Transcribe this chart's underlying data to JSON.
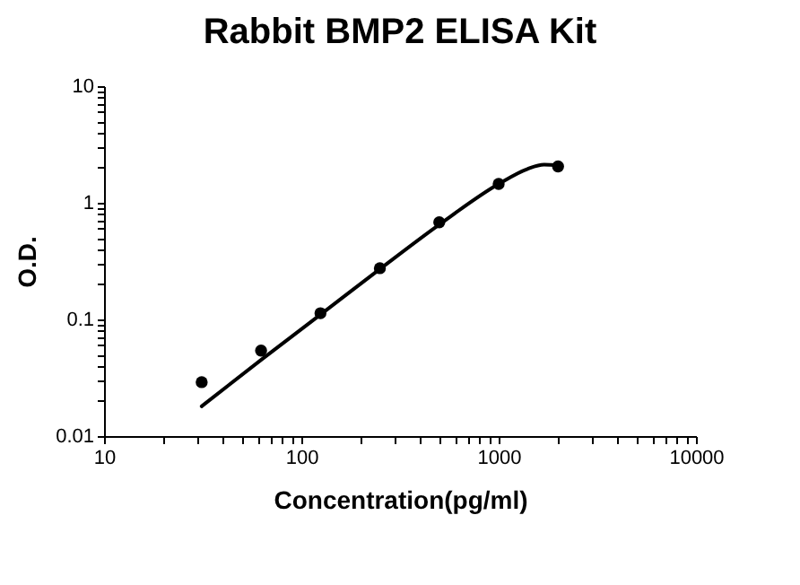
{
  "chart_data": {
    "type": "scatter",
    "title": "Rabbit BMP2 ELISA Kit",
    "xlabel": "Concentration(pg/ml)",
    "ylabel": "O.D.",
    "log": "xy",
    "marker": "circle",
    "grid": false,
    "xlim": [
      10,
      10000
    ],
    "ylim": [
      0.01,
      10
    ],
    "xticks": [
      10,
      {
        "value": 20,
        "label": null
      },
      {
        "value": 30,
        "label": null
      },
      {
        "value": 40,
        "label": null
      },
      {
        "value": 50,
        "label": null
      },
      {
        "value": 60,
        "label": null
      },
      {
        "value": 70,
        "label": null
      },
      {
        "value": 80,
        "label": null
      },
      {
        "value": 90,
        "label": null
      },
      100,
      {
        "value": 200,
        "label": null
      },
      {
        "value": 300,
        "label": null
      },
      {
        "value": 400,
        "label": null
      },
      {
        "value": 500,
        "label": null
      },
      {
        "value": 600,
        "label": null
      },
      {
        "value": 700,
        "label": null
      },
      {
        "value": 800,
        "label": null
      },
      {
        "value": 900,
        "label": null
      },
      1000,
      {
        "value": 2000,
        "label": null
      },
      {
        "value": 3000,
        "label": null
      },
      {
        "value": 4000,
        "label": null
      },
      {
        "value": 5000,
        "label": null
      },
      {
        "value": 6000,
        "label": null
      },
      {
        "value": 7000,
        "label": null
      },
      {
        "value": 8000,
        "label": null
      },
      {
        "value": 9000,
        "label": null
      },
      10000
    ],
    "yticks": [
      0.01,
      {
        "value": 0.02,
        "label": null
      },
      {
        "value": 0.03,
        "label": null
      },
      {
        "value": 0.04,
        "label": null
      },
      {
        "value": 0.05,
        "label": null
      },
      {
        "value": 0.06,
        "label": null
      },
      {
        "value": 0.07,
        "label": null
      },
      {
        "value": 0.08,
        "label": null
      },
      {
        "value": 0.09,
        "label": null
      },
      0.1,
      {
        "value": 0.2,
        "label": null
      },
      {
        "value": 0.3,
        "label": null
      },
      {
        "value": 0.4,
        "label": null
      },
      {
        "value": 0.5,
        "label": null
      },
      {
        "value": 0.6,
        "label": null
      },
      {
        "value": 0.7,
        "label": null
      },
      {
        "value": 0.8,
        "label": null
      },
      {
        "value": 0.9,
        "label": null
      },
      1,
      {
        "value": 2,
        "label": null
      },
      {
        "value": 3,
        "label": null
      },
      {
        "value": 4,
        "label": null
      },
      {
        "value": 5,
        "label": null
      },
      {
        "value": 6,
        "label": null
      },
      {
        "value": 7,
        "label": null
      },
      {
        "value": 8,
        "label": null
      },
      {
        "value": 9,
        "label": null
      },
      10
    ],
    "x": [
      31.25,
      62.5,
      125,
      250,
      500,
      1000,
      2000
    ],
    "series": [
      {
        "color": "#000000",
        "values": [
          0.029,
          0.054,
          0.113,
          0.275,
          0.68,
          1.45,
          2.05
        ]
      },
      {
        "type": "line",
        "color": "#000000",
        "line_style": "solid",
        "marker": "none",
        "x": [
          31.25,
          62.5,
          125,
          250,
          500,
          1000,
          1400,
          1700,
          2000
        ],
        "values": [
          0.018,
          0.045,
          0.11,
          0.27,
          0.65,
          1.45,
          1.95,
          2.12,
          2.1
        ]
      }
    ]
  }
}
